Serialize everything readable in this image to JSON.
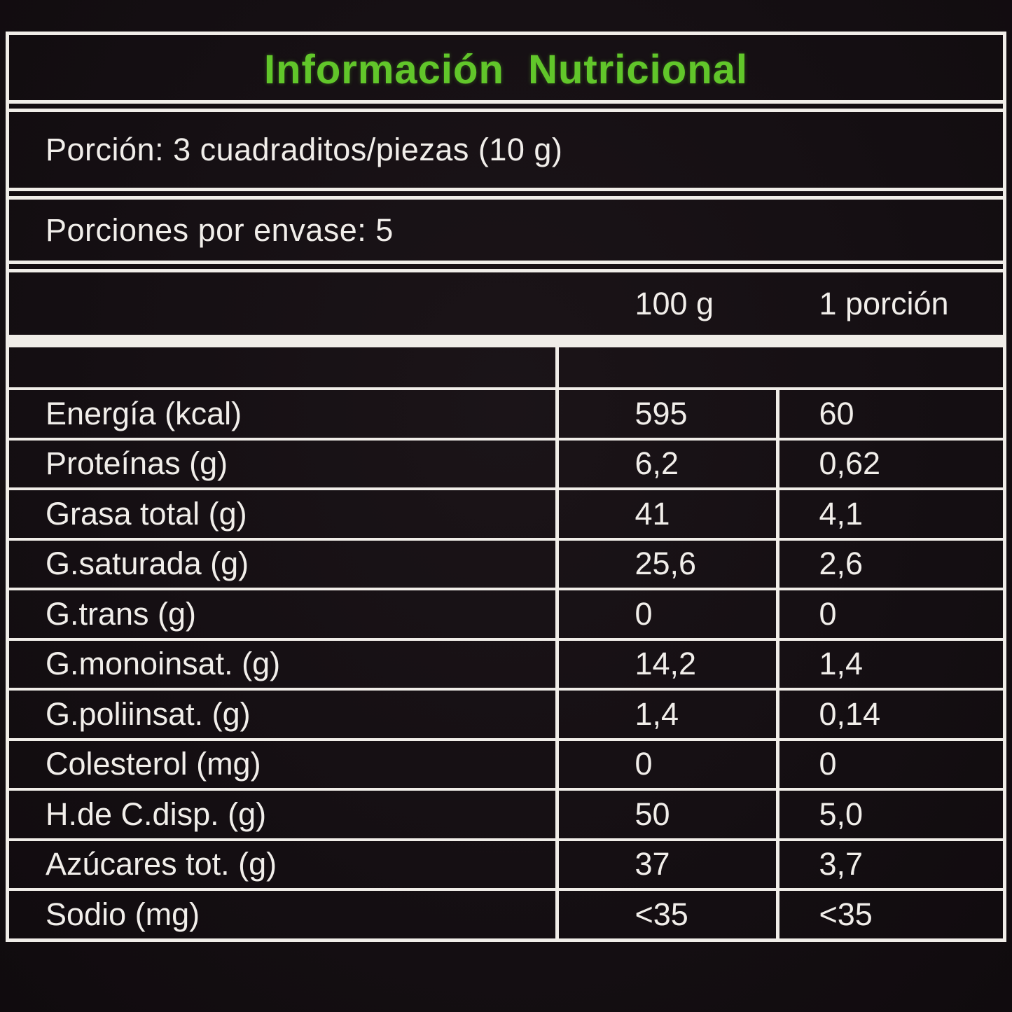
{
  "title": "Información  Nutricional",
  "serving": {
    "porcion": "Porción: 3 cuadraditos/piezas (10 g)",
    "porciones": "Porciones por envase: 5"
  },
  "columns": {
    "col1": "100 g",
    "col2": "1 porción"
  },
  "rows": [
    {
      "label": "Energía (kcal)",
      "per100": "595",
      "porcion": "60"
    },
    {
      "label": "Proteínas (g)",
      "per100": "6,2",
      "porcion": "0,62"
    },
    {
      "label": "Grasa total (g)",
      "per100": "41",
      "porcion": "4,1"
    },
    {
      "label": "G.saturada (g)",
      "per100": "25,6",
      "porcion": "2,6"
    },
    {
      "label": "G.trans (g)",
      "per100": "0",
      "porcion": "0"
    },
    {
      "label": "G.monoinsat. (g)",
      "per100": "14,2",
      "porcion": "1,4"
    },
    {
      "label": "G.poliinsat. (g)",
      "per100": "1,4",
      "porcion": "0,14"
    },
    {
      "label": "Colesterol (mg)",
      "per100": "0",
      "porcion": "0"
    },
    {
      "label": "H.de C.disp. (g)",
      "per100": "50",
      "porcion": "5,0"
    },
    {
      "label": "Azúcares tot. (g)",
      "per100": "37",
      "porcion": "3,7"
    },
    {
      "label": "Sodio (mg)",
      "per100": "<35",
      "porcion": "<35"
    }
  ],
  "colors": {
    "background": "#150f13",
    "text": "#f1eeea",
    "accent_green": "#61c62a",
    "line": "#f0ede8"
  }
}
